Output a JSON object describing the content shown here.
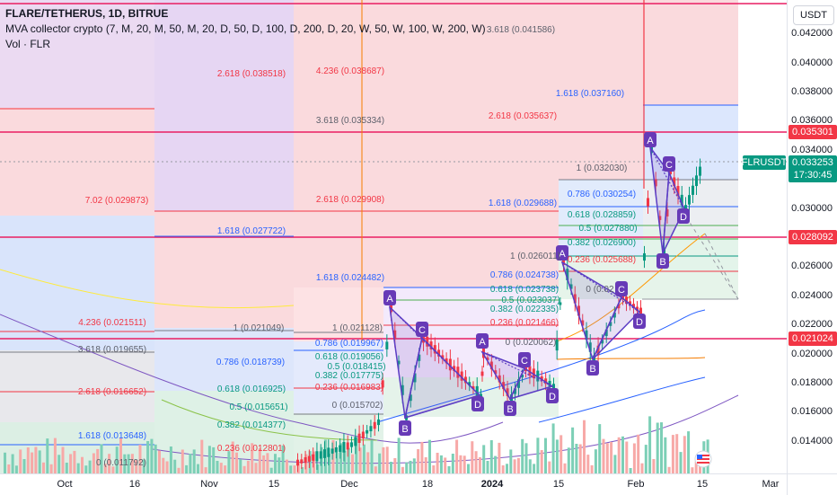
{
  "legend": {
    "symbol_line": "FLARE/TETHERUS, 1D, BITRUE",
    "indicator_line": "MVA collector crypto (7, M, 20, M, 50, M, 20, D, 50, D, 100, D, 200, D, 20, W, 50, W, 100, W, 200, W)",
    "volume_line": "Vol · FLR"
  },
  "price_axis": {
    "currency_button": "USDT",
    "ticks": [
      "0.042000",
      "0.040000",
      "0.038000",
      "0.036000",
      "0.034000",
      "0.032000",
      "0.030000",
      "0.028000",
      "0.026000",
      "0.024000",
      "0.022000",
      "0.020000",
      "0.018000",
      "0.016000",
      "0.014000"
    ],
    "badges": [
      {
        "value": "0.035301",
        "color": "#f23645"
      },
      {
        "value": "0.028092",
        "color": "#f23645"
      },
      {
        "value": "0.021024",
        "color": "#f23645"
      }
    ],
    "symbol_label": "FLRUSDT",
    "current_price": "0.033253",
    "countdown": "17:30:45"
  },
  "time_axis": {
    "labels": [
      {
        "text": "Oct",
        "bold": false
      },
      {
        "text": "16",
        "bold": false
      },
      {
        "text": "Nov",
        "bold": false
      },
      {
        "text": "15",
        "bold": false
      },
      {
        "text": "Dec",
        "bold": false
      },
      {
        "text": "18",
        "bold": false
      },
      {
        "text": "2024",
        "bold": true
      },
      {
        "text": "15",
        "bold": false
      },
      {
        "text": "Feb",
        "bold": false
      },
      {
        "text": "15",
        "bold": false
      },
      {
        "text": "Mar",
        "bold": false
      }
    ]
  },
  "fib_labels": [
    "3.618 (0.041586)",
    "1.618 (0.037160)",
    "2.618 (0.035637)",
    "1 (0.032030)",
    "0.786 (0.030254)",
    "0.618 (0.028859)",
    "0.5 (0.027880)",
    "0.382 (0.026900)",
    "0.236 (0.025688)",
    "2.618 (0.038518)",
    "4.236 (0.038687)",
    "3.618 (0.035334)",
    "2.618 (0.029908)",
    "1.618 (0.029688)",
    "7.02 (0.029873)",
    "1.618 (0.027722)",
    "1.618 (0.024482)",
    "1 (0.026011)",
    "0.786 (0.024738)",
    "0.618 (0.023738)",
    "0.5 (0.023037)",
    "0.382 (0.022335)",
    "0.236 (0.021466)",
    "0 (0.020062)",
    "4.236 (0.021511)",
    "1 (0.021049)",
    "1 (0.021128)",
    "3.618 (0.019655)",
    "0.786 (0.019967)",
    "0.786 (0.018739)",
    "0.618 (0.019056)",
    "0.5 (0.018415)",
    "0.382 (0.017775)",
    "0.236 (0.016983)",
    "2.618 (0.016652)",
    "0.618 (0.016925)",
    "0 (0.015702)",
    "0.5 (0.015651)",
    "0.382 (0.014377)",
    "1.618 (0.013648)",
    "0.236 (0.012801)",
    "0 (0.011792)",
    "0 (0.02"
  ],
  "pattern_points": [
    "A",
    "B",
    "C",
    "D",
    "A",
    "B",
    "C",
    "D",
    "A",
    "B",
    "C",
    "D",
    "A",
    "B",
    "C",
    "D"
  ]
}
